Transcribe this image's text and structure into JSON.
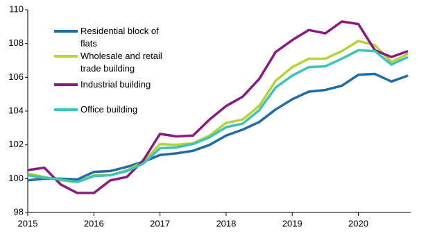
{
  "chart_data": {
    "type": "line",
    "categories": [
      "2015",
      null,
      null,
      null,
      "2016",
      null,
      null,
      null,
      "2017",
      null,
      null,
      null,
      "2018",
      null,
      null,
      null,
      "2019",
      null,
      null,
      null,
      "2020",
      null,
      null,
      null
    ],
    "series": [
      {
        "name": "Residential block of flats",
        "color": "#1f6ba5",
        "values": [
          99.9,
          100.0,
          100.0,
          99.95,
          100.4,
          100.45,
          100.7,
          101.0,
          101.4,
          101.5,
          101.65,
          102.0,
          102.55,
          102.9,
          103.35,
          104.1,
          104.7,
          105.15,
          105.25,
          105.5,
          106.15,
          106.2,
          105.75,
          106.1
        ]
      },
      {
        "name": "Wholesale and retail trade building",
        "color": "#b5d334",
        "values": [
          100.3,
          100.1,
          99.9,
          99.8,
          100.2,
          100.2,
          100.5,
          101.0,
          102.05,
          102.0,
          102.1,
          102.55,
          103.3,
          103.5,
          104.3,
          105.8,
          106.6,
          107.1,
          107.1,
          107.55,
          108.15,
          107.9,
          106.9,
          107.4
        ]
      },
      {
        "name": "Industrial building",
        "color": "#8a1a80",
        "values": [
          100.5,
          100.65,
          99.65,
          99.15,
          99.15,
          99.9,
          100.1,
          101.1,
          102.65,
          102.5,
          102.55,
          103.5,
          104.3,
          104.85,
          105.9,
          107.5,
          108.2,
          108.8,
          108.6,
          109.3,
          109.15,
          107.6,
          107.2,
          107.55
        ]
      },
      {
        "name": "Office building",
        "color": "#3ec3b8",
        "values": [
          100.2,
          100.05,
          99.95,
          99.8,
          100.15,
          100.2,
          100.45,
          100.9,
          101.8,
          101.85,
          102.05,
          102.45,
          103.05,
          103.25,
          104.05,
          105.4,
          106.1,
          106.6,
          106.65,
          107.1,
          107.6,
          107.55,
          106.75,
          107.2
        ]
      }
    ],
    "ylim": [
      98,
      110
    ],
    "yticks": [
      98,
      100,
      102,
      104,
      106,
      108,
      110
    ],
    "grid": false,
    "legend": "top-left"
  }
}
